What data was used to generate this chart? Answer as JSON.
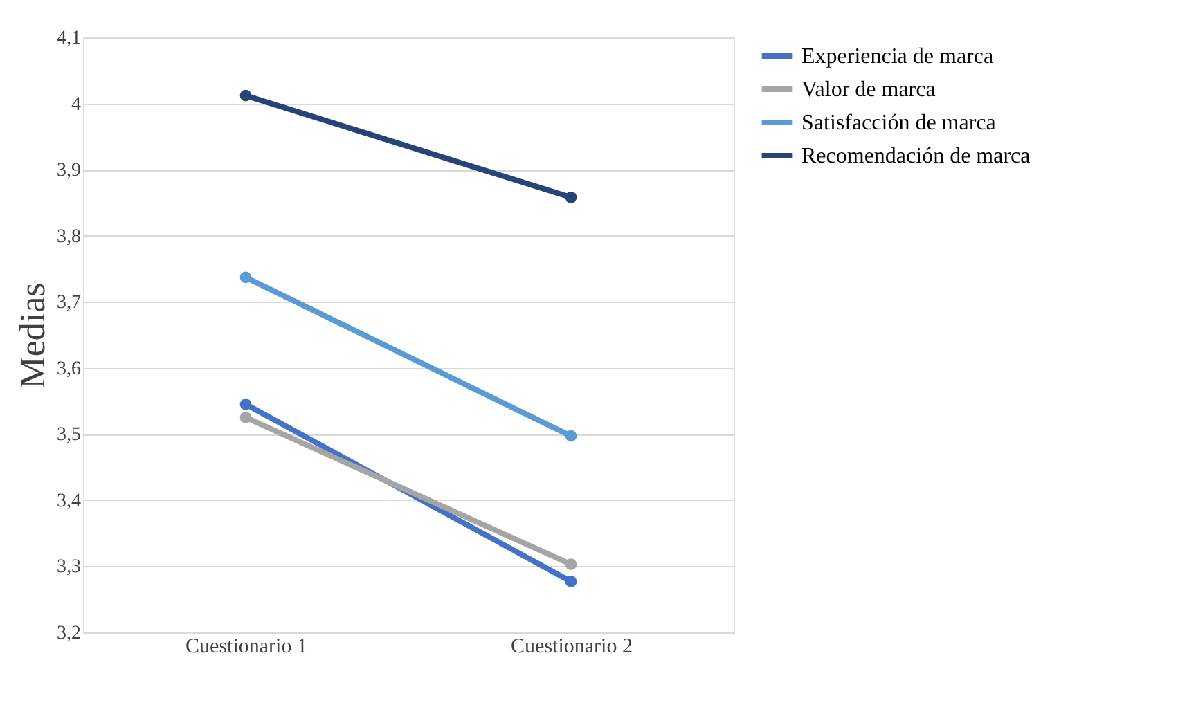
{
  "chart_data": {
    "type": "line",
    "ylabel": "Medias",
    "categories": [
      "Cuestionario 1",
      "Cuestionario 2"
    ],
    "series": [
      {
        "name": "Experiencia de marca",
        "color": "#4472c4",
        "values": [
          3.545,
          3.277
        ]
      },
      {
        "name": "Valor de marca",
        "color": "#a5a5a5",
        "values": [
          3.525,
          3.303
        ]
      },
      {
        "name": "Satisfacción de marca",
        "color": "#5b9bd5",
        "values": [
          3.737,
          3.497
        ]
      },
      {
        "name": "Recomendación de marca",
        "color": "#264478",
        "values": [
          4.012,
          3.858
        ]
      }
    ],
    "ylim": [
      3.2,
      4.1
    ],
    "yticks": [
      {
        "value": 3.2,
        "label": "3,2"
      },
      {
        "value": 3.3,
        "label": "3,3"
      },
      {
        "value": 3.4,
        "label": "3,4"
      },
      {
        "value": 3.5,
        "label": "3,5"
      },
      {
        "value": 3.6,
        "label": "3,6"
      },
      {
        "value": 3.7,
        "label": "3,7"
      },
      {
        "value": 3.8,
        "label": "3,8"
      },
      {
        "value": 3.9,
        "label": "3,9"
      },
      4,
      {
        "value": 4.1,
        "label": "4,1"
      }
    ],
    "grid": "y",
    "legend": "right",
    "marker": "circle",
    "line_style": "solid"
  }
}
